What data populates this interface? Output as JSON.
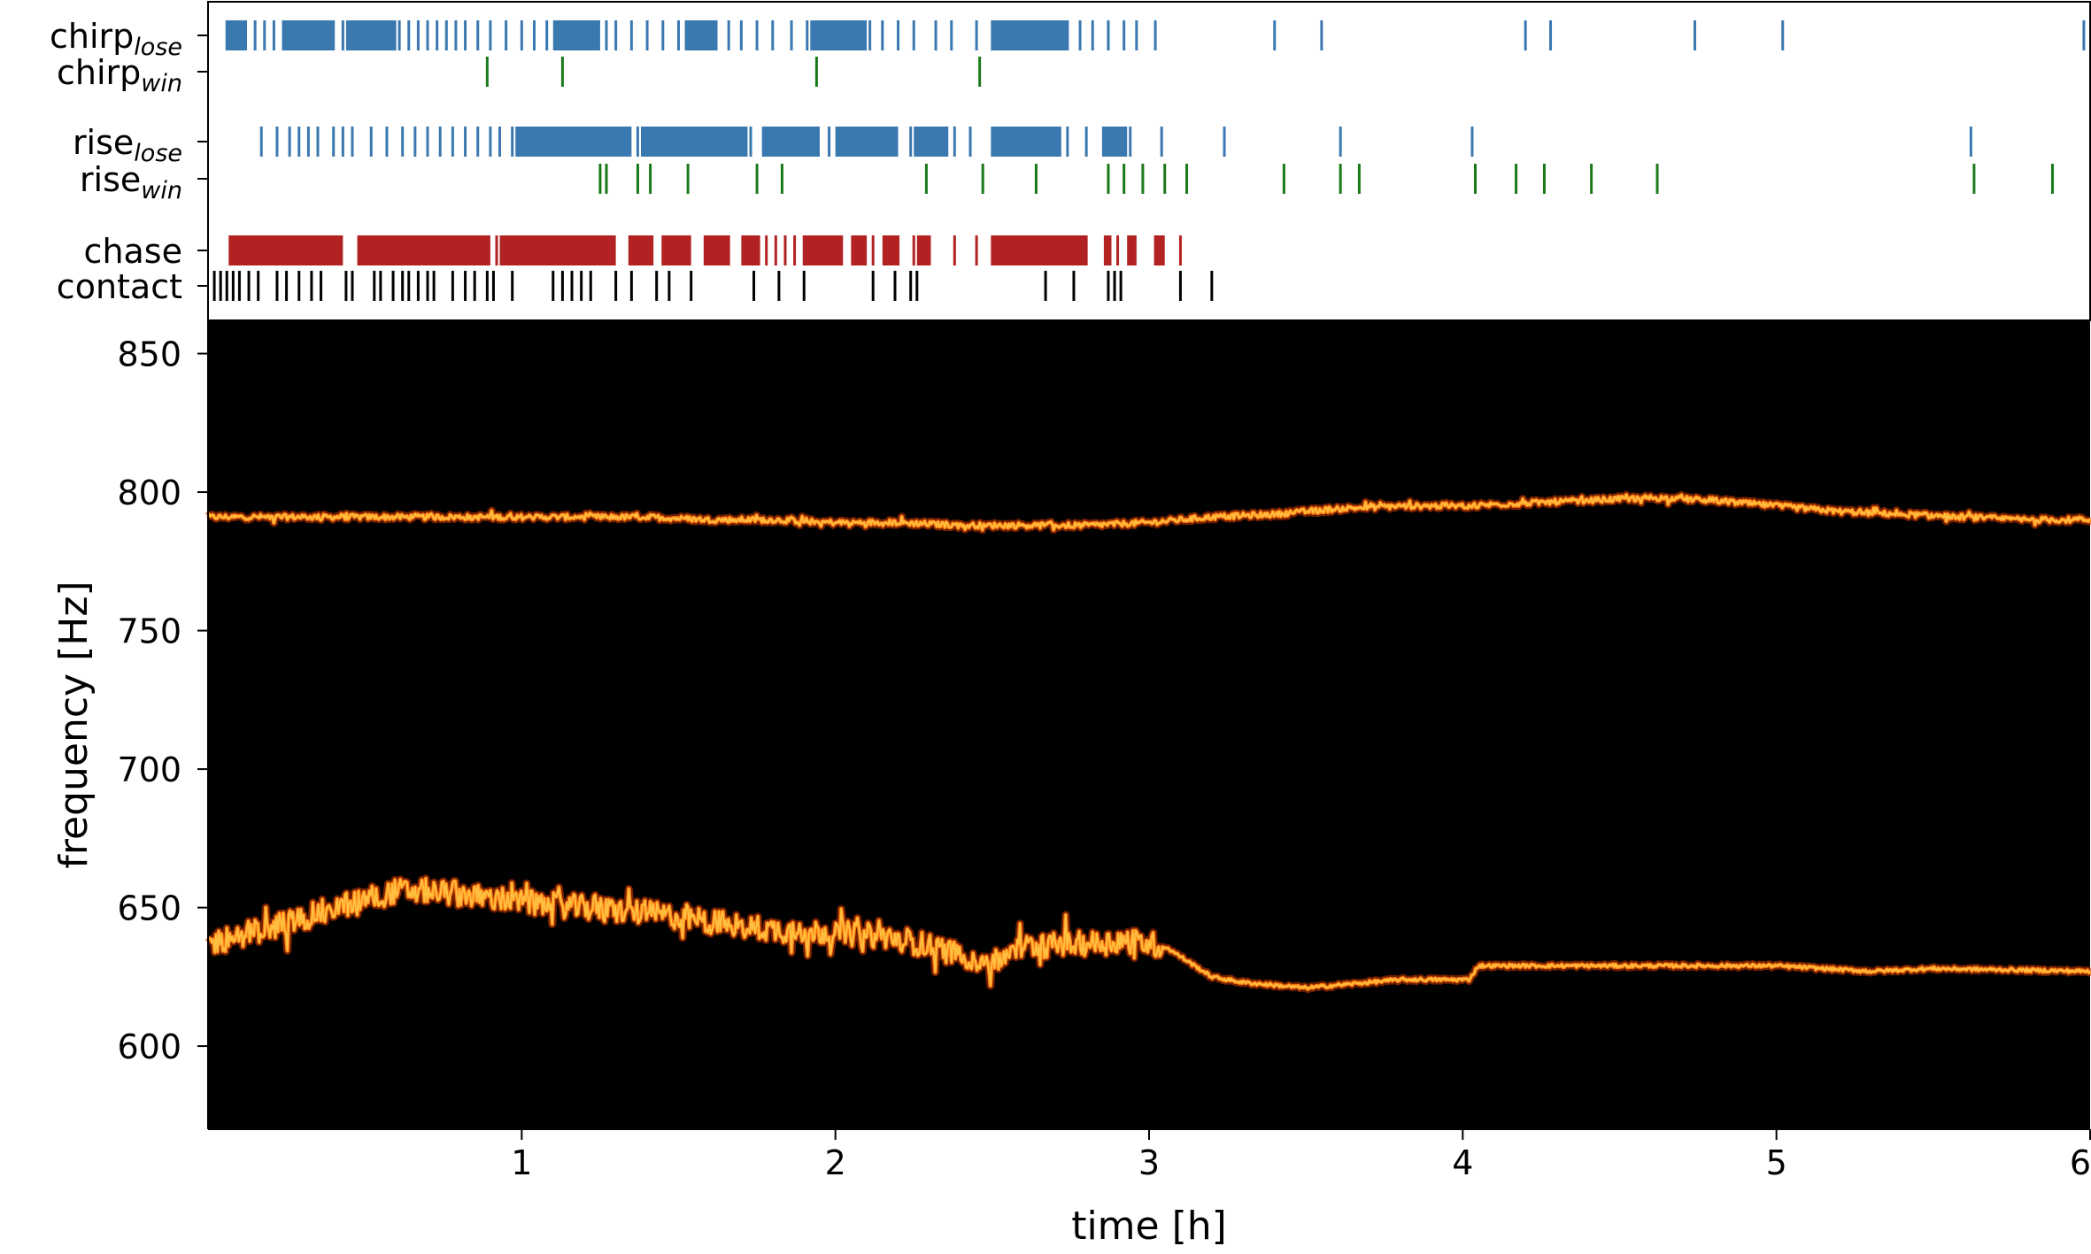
{
  "chart_data": [
    {
      "type": "event-raster",
      "rows": [
        {
          "key": "chirp_lose",
          "label": "chirp",
          "sub": "lose",
          "color": "#3a78b0",
          "events": [
            0.06,
            0.09,
            0.12,
            0.15,
            0.18,
            0.21,
            0.24,
            0.27,
            0.3,
            0.33,
            0.36,
            0.4,
            0.43,
            0.46,
            0.49,
            0.52,
            0.55,
            0.58,
            0.61,
            0.64,
            0.67,
            0.7,
            0.73,
            0.76,
            0.79,
            0.82,
            0.86,
            0.9,
            0.95,
            1.0,
            1.04,
            1.08,
            1.12,
            1.16,
            1.2,
            1.24,
            1.27,
            1.3,
            1.35,
            1.4,
            1.45,
            1.5,
            1.55,
            1.58,
            1.62,
            1.66,
            1.7,
            1.75,
            1.8,
            1.86,
            1.91,
            1.95,
            1.99,
            2.03,
            2.07,
            2.11,
            2.15,
            2.2,
            2.25,
            2.32,
            2.37,
            2.45,
            2.5,
            2.54,
            2.58,
            2.62,
            2.66,
            2.7,
            2.74,
            2.78,
            2.82,
            2.87,
            2.92,
            2.96,
            3.02,
            3.4,
            3.55,
            4.2,
            4.28,
            4.74,
            5.02,
            5.98
          ],
          "blocks": [
            [
              0.06,
              0.12
            ],
            [
              0.24,
              0.4
            ],
            [
              0.44,
              0.6
            ],
            [
              1.1,
              1.25
            ],
            [
              1.52,
              1.62
            ],
            [
              1.92,
              2.1
            ],
            [
              2.5,
              2.74
            ]
          ]
        },
        {
          "key": "chirp_win",
          "label": "chirp",
          "sub": "win",
          "color": "#1a7a1a",
          "events": [
            0.89,
            1.13,
            1.94,
            2.46
          ]
        },
        {
          "key": "rise_lose",
          "label": "rise",
          "sub": "lose",
          "color": "#3a78b0",
          "events": [
            0.17,
            0.22,
            0.26,
            0.29,
            0.32,
            0.35,
            0.4,
            0.43,
            0.46,
            0.52,
            0.57,
            0.62,
            0.66,
            0.7,
            0.74,
            0.78,
            0.82,
            0.86,
            0.9,
            0.93,
            0.97,
            1.01,
            1.05,
            1.09,
            1.13,
            1.17,
            1.21,
            1.25,
            1.29,
            1.33,
            1.37,
            1.41,
            1.45,
            1.49,
            1.53,
            1.57,
            1.61,
            1.65,
            1.69,
            1.73,
            1.77,
            1.81,
            1.86,
            1.9,
            1.94,
            1.98,
            2.02,
            2.06,
            2.1,
            2.14,
            2.18,
            2.24,
            2.3,
            2.38,
            2.43,
            2.5,
            2.55,
            2.6,
            2.65,
            2.7,
            2.74,
            2.8,
            2.86,
            2.9,
            2.94,
            3.04,
            3.24,
            3.61,
            4.03,
            5.62
          ],
          "blocks": [
            [
              0.98,
              1.35
            ],
            [
              1.38,
              1.72
            ],
            [
              1.77,
              1.95
            ],
            [
              2.0,
              2.2
            ],
            [
              2.25,
              2.36
            ],
            [
              2.5,
              2.72
            ],
            [
              2.85,
              2.93
            ]
          ]
        },
        {
          "key": "rise_win",
          "label": "rise",
          "sub": "win",
          "color": "#1a7a1a",
          "events": [
            1.25,
            1.27,
            1.37,
            1.41,
            1.53,
            1.75,
            1.83,
            2.29,
            2.47,
            2.64,
            2.87,
            2.92,
            2.98,
            3.05,
            3.12,
            3.43,
            3.61,
            3.67,
            4.04,
            4.17,
            4.26,
            4.41,
            4.62,
            5.63,
            5.88
          ]
        },
        {
          "key": "chase",
          "label": "chase",
          "sub": "",
          "color": "#b22222",
          "events": [
            0.07,
            0.1,
            0.16,
            0.2,
            0.25,
            0.3,
            0.36,
            0.42,
            0.48,
            0.54,
            0.6,
            0.66,
            0.72,
            0.78,
            0.84,
            0.92,
            0.98,
            1.04,
            1.1,
            1.16,
            1.22,
            1.28,
            1.35,
            1.4,
            1.45,
            1.52,
            1.6,
            1.66,
            1.72,
            1.75,
            1.78,
            1.81,
            1.84,
            1.87,
            1.9,
            1.95,
            2.02,
            2.08,
            2.12,
            2.2,
            2.25,
            2.3,
            2.38,
            2.45,
            2.5,
            2.55,
            2.6,
            2.65,
            2.7,
            2.75,
            2.8,
            2.86,
            2.9,
            2.95,
            3.02,
            3.1
          ],
          "blocks": [
            [
              0.07,
              0.43
            ],
            [
              0.48,
              0.9
            ],
            [
              0.93,
              1.3
            ],
            [
              1.34,
              1.42
            ],
            [
              1.45,
              1.54
            ],
            [
              1.58,
              1.66
            ],
            [
              1.7,
              1.76
            ],
            [
              1.9,
              2.02
            ],
            [
              2.05,
              2.1
            ],
            [
              2.15,
              2.2
            ],
            [
              2.26,
              2.3
            ],
            [
              2.5,
              2.8
            ],
            [
              2.86,
              2.88
            ],
            [
              2.93,
              2.96
            ],
            [
              3.02,
              3.05
            ]
          ]
        },
        {
          "key": "contact",
          "label": "contact",
          "sub": "",
          "color": "#000000",
          "events": [
            0.02,
            0.04,
            0.06,
            0.08,
            0.1,
            0.13,
            0.16,
            0.22,
            0.25,
            0.29,
            0.33,
            0.36,
            0.44,
            0.46,
            0.53,
            0.55,
            0.59,
            0.62,
            0.64,
            0.67,
            0.7,
            0.72,
            0.78,
            0.82,
            0.85,
            0.89,
            0.91,
            0.97,
            1.1,
            1.13,
            1.16,
            1.19,
            1.22,
            1.3,
            1.35,
            1.43,
            1.47,
            1.54,
            1.74,
            1.82,
            1.9,
            2.12,
            2.19,
            2.24,
            2.26,
            2.67,
            2.76,
            2.87,
            2.89,
            2.91,
            3.1,
            3.2
          ]
        }
      ],
      "xlim": [
        0,
        6
      ]
    },
    {
      "type": "spectrogram",
      "xlabel": "time [h]",
      "ylabel": "frequency [Hz]",
      "xlim": [
        0,
        6
      ],
      "ylim": [
        570,
        862
      ],
      "xticks": [
        1,
        2,
        3,
        4,
        5,
        6
      ],
      "yticks": [
        600,
        650,
        700,
        750,
        800,
        850
      ],
      "background": "#000000",
      "colormap": [
        "#7a1500",
        "#d03a00",
        "#ff7a10",
        "#ffc040",
        "#fff2b0"
      ],
      "series": [
        {
          "x": [
            0.0,
            0.2,
            0.4,
            0.6,
            0.8,
            1.0,
            1.2,
            1.4,
            1.6,
            1.8,
            2.0,
            2.2,
            2.4,
            2.6,
            2.8,
            3.0,
            3.2,
            3.4,
            3.6,
            3.8,
            4.0,
            4.2,
            4.4,
            4.6,
            4.8,
            5.0,
            5.2,
            5.4,
            5.6,
            5.8,
            6.0
          ],
          "y": [
            791,
            791,
            791,
            791,
            791,
            791,
            791,
            791,
            790,
            790,
            789,
            789,
            788,
            788,
            788,
            789,
            791,
            792,
            794,
            795,
            795,
            796,
            797,
            798,
            797,
            795,
            793,
            792,
            791,
            790,
            790
          ],
          "jitter": 2
        },
        {
          "x": [
            0.0,
            0.1,
            0.2,
            0.3,
            0.4,
            0.5,
            0.6,
            0.7,
            0.8,
            1.0,
            1.2,
            1.4,
            1.6,
            1.8,
            2.0,
            2.2,
            2.4,
            2.5,
            2.6,
            2.8,
            2.95,
            3.05,
            3.2,
            3.3,
            3.5,
            3.6,
            3.8,
            4.02,
            4.05,
            4.5,
            5.0,
            5.3,
            5.5,
            6.0
          ],
          "y": [
            637,
            640,
            643,
            646,
            650,
            653,
            656,
            656,
            655,
            652,
            650,
            648,
            645,
            642,
            641,
            639,
            633,
            630,
            636,
            637,
            638,
            636,
            625,
            623,
            621,
            622,
            624,
            624,
            629,
            629,
            629,
            627,
            628,
            627
          ],
          "jitter_until": 3.05,
          "jitter": 9
        }
      ]
    }
  ]
}
